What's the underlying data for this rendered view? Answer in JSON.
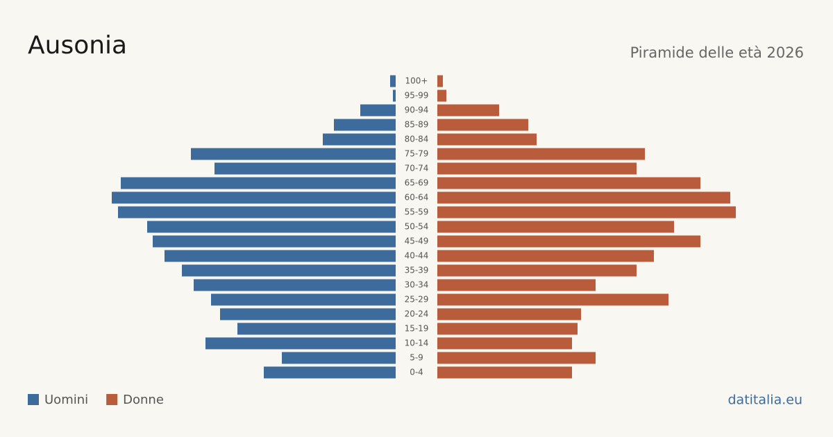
{
  "chart_data": {
    "type": "pyramid",
    "title": "Ausonia",
    "subtitle": "Piramide delle età 2026",
    "source": "datitalia.eu",
    "categories": [
      "0-4",
      "5-9",
      "10-14",
      "15-19",
      "20-24",
      "25-29",
      "30-34",
      "35-39",
      "40-44",
      "45-49",
      "50-54",
      "55-59",
      "60-64",
      "65-69",
      "70-74",
      "75-79",
      "80-84",
      "85-89",
      "90-94",
      "95-99",
      "100+"
    ],
    "series": [
      {
        "name": "Uomini",
        "color": "#3d6b9c",
        "values": [
          190,
          164,
          274,
          228,
          253,
          266,
          291,
          308,
          333,
          350,
          358,
          400,
          409,
          396,
          261,
          295,
          105,
          89,
          51,
          4,
          8
        ]
      },
      {
        "name": "Donne",
        "color": "#b95c3c",
        "values": [
          194,
          228,
          194,
          202,
          207,
          333,
          228,
          287,
          312,
          379,
          341,
          430,
          422,
          379,
          287,
          299,
          143,
          131,
          89,
          13,
          8
        ]
      }
    ]
  }
}
